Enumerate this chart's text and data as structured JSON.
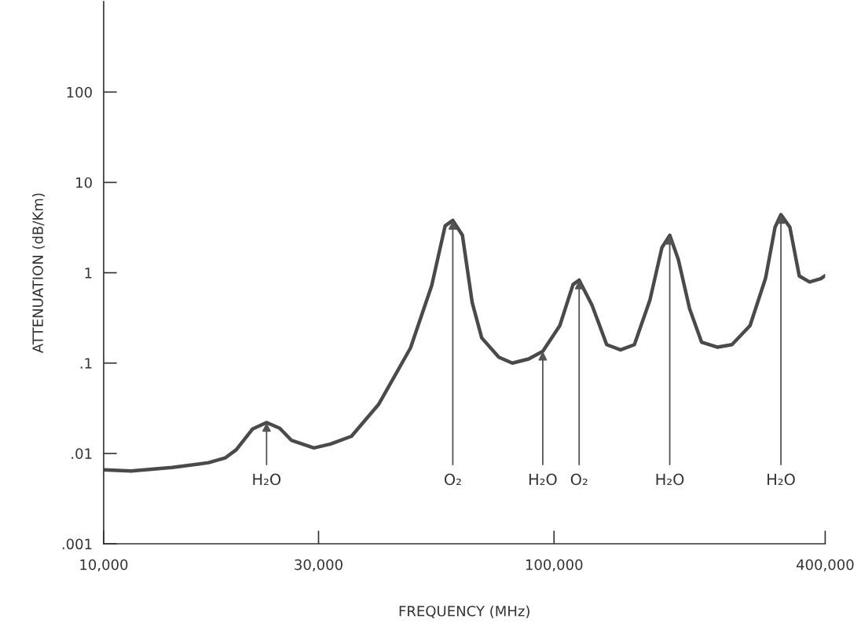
{
  "chart_data": {
    "type": "line",
    "xlabel": "FREQUENCY (MHz)",
    "ylabel": "ATTENUATION (dB/Km)",
    "log": "xy",
    "x": [
      10000,
      11500,
      14200,
      17100,
      18600,
      19700,
      21400,
      23000,
      24600,
      26100,
      29300,
      31900,
      35500,
      40800,
      48000,
      53500,
      57300,
      59600,
      62600,
      65800,
      69100,
      75400,
      80800,
      87800,
      94400,
      103000,
      110200,
      113700,
      121400,
      130900,
      140500,
      150800,
      163300,
      173600,
      180700,
      188800,
      200000,
      212700,
      230300,
      248300,
      272400,
      294900,
      309600,
      319000,
      333900,
      350400,
      369400,
      391200,
      400000
    ],
    "series": [
      {
        "color": "#4a4a4a",
        "values": [
          0.0066,
          0.0064,
          0.007,
          0.0079,
          0.0089,
          0.011,
          0.0186,
          0.022,
          0.019,
          0.014,
          0.0115,
          0.0127,
          0.0155,
          0.035,
          0.147,
          0.72,
          3.3,
          3.8,
          2.6,
          0.47,
          0.19,
          0.116,
          0.1,
          0.111,
          0.135,
          0.26,
          0.74,
          0.83,
          0.44,
          0.16,
          0.14,
          0.16,
          0.5,
          1.9,
          2.6,
          1.4,
          0.4,
          0.17,
          0.15,
          0.16,
          0.26,
          0.87,
          3.2,
          4.4,
          3.2,
          0.92,
          0.79,
          0.86,
          0.93
        ]
      }
    ],
    "xlim": [
      10000,
      400000
    ],
    "xticks": [
      {
        "value": 10000,
        "label": "10,000"
      },
      {
        "value": 30000,
        "label": "30,000"
      },
      {
        "value": 100000,
        "label": "100,000"
      },
      {
        "value": 400000,
        "label": "400,000"
      }
    ],
    "ylim": [
      0.001,
      1000
    ],
    "yticks": [
      {
        "value": 0.001,
        "label": ".001"
      },
      {
        "value": 0.01,
        "label": ".01"
      },
      {
        "value": 0.1,
        "label": ".1"
      },
      1,
      10,
      100
    ],
    "annotations": [
      {
        "text": "H₂O",
        "x": 23000,
        "y": 0.022
      },
      {
        "text": "O₂",
        "x": 59600,
        "y": 3.8
      },
      {
        "text": "H₂O",
        "x": 94400,
        "y": 0.135
      },
      {
        "text": "O₂",
        "x": 113700,
        "y": 0.83
      },
      {
        "text": "H₂O",
        "x": 180700,
        "y": 2.6
      },
      {
        "text": "H₂O",
        "x": 319000,
        "y": 4.4
      }
    ],
    "grid": false,
    "marker": "none",
    "line_style": "solid"
  }
}
